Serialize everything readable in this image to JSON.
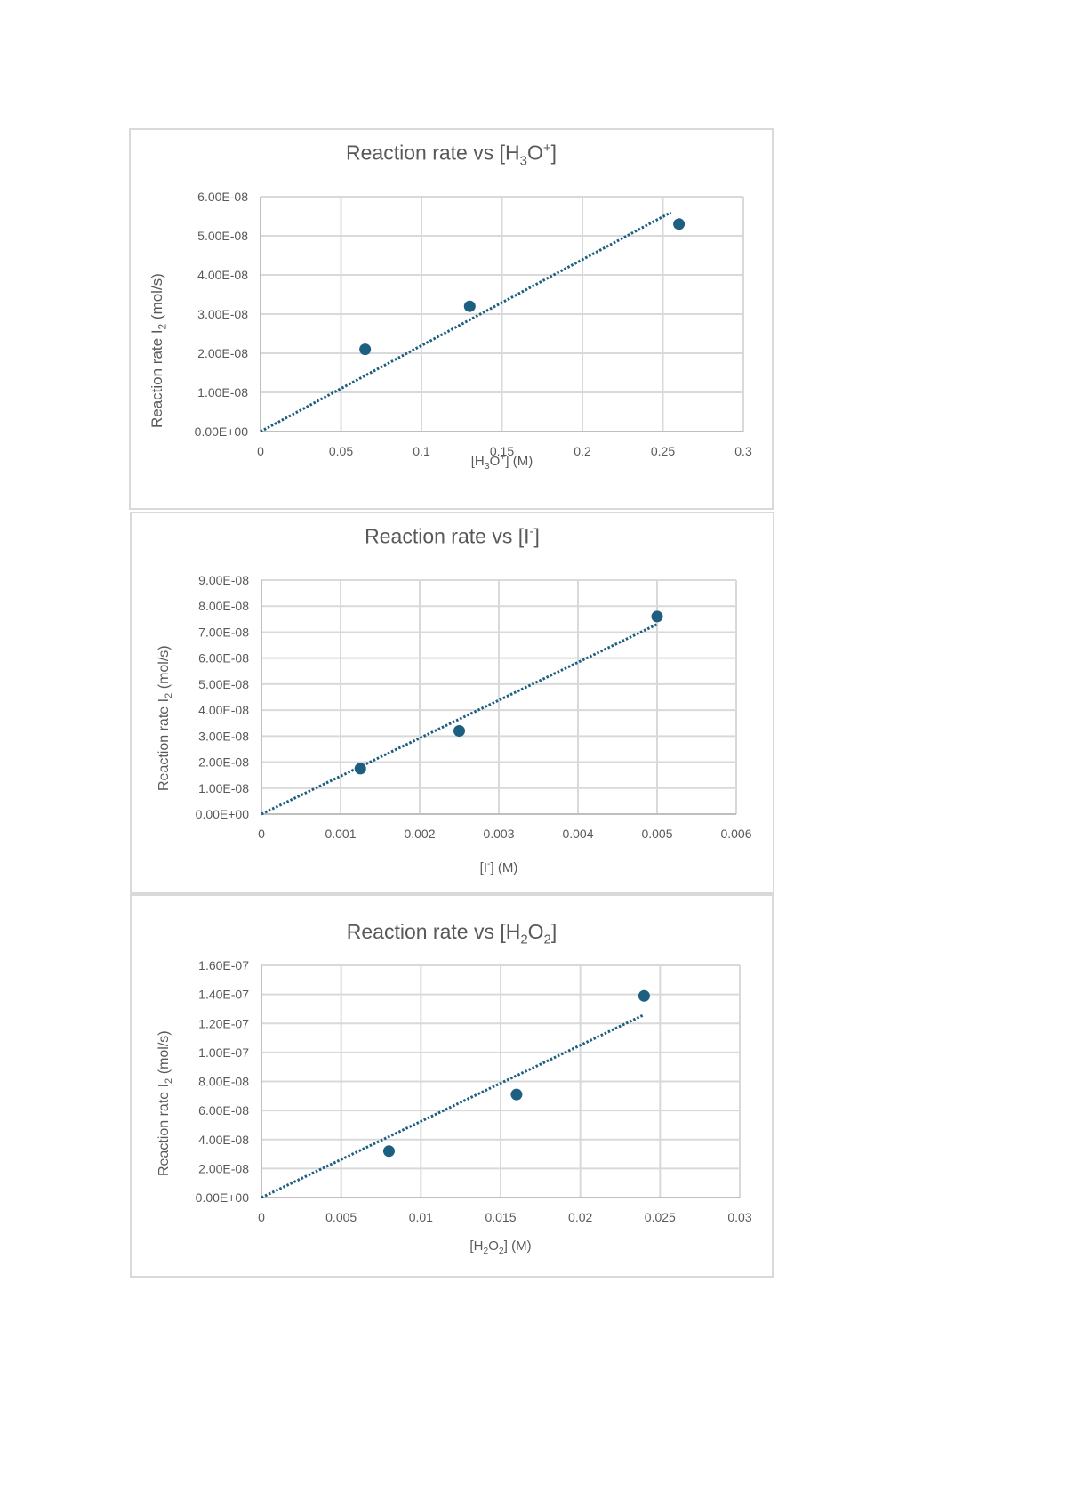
{
  "colors": {
    "series": "#1d5f80",
    "grid": "#d9d9d9",
    "text": "#595959",
    "frame": "#d9d9d9"
  },
  "chart_data": [
    {
      "type": "scatter",
      "title": "Reaction rate vs [H3O+]",
      "title_parts": {
        "pre": "Reaction rate vs [H",
        "sub": "3",
        "mid": "O",
        "sup": "+",
        "post": "]"
      },
      "xlabel": "[H3O+] (M)",
      "xlabel_parts": {
        "pre": "[H",
        "sub": "3",
        "mid": "O",
        "sup": "+",
        "post": "] (M)"
      },
      "ylabel": "Reaction rate I2 (mol/s)",
      "ylabel_parts": {
        "pre": "Reaction rate I",
        "sub": "2",
        "post": " (mol/s)"
      },
      "xlim": [
        0,
        0.3
      ],
      "ylim": [
        0,
        6e-08
      ],
      "x_ticks": [
        0,
        0.05,
        0.1,
        0.15,
        0.2,
        0.25,
        0.3
      ],
      "x_tick_labels": [
        "0",
        "0.05",
        "0.1",
        "0.15",
        "0.2",
        "0.25",
        "0.3"
      ],
      "y_ticks": [
        0,
        1e-08,
        2e-08,
        3e-08,
        4e-08,
        5e-08,
        6e-08
      ],
      "y_tick_labels": [
        "0.00E+00",
        "1.00E-08",
        "2.00E-08",
        "3.00E-08",
        "4.00E-08",
        "5.00E-08",
        "6.00E-08"
      ],
      "grid": true,
      "legend": null,
      "series": [
        {
          "name": "Reaction rate",
          "x": [
            0.065,
            0.13,
            0.26
          ],
          "y": [
            2.1e-08,
            3.2e-08,
            5.3e-08
          ]
        }
      ],
      "trendline": {
        "type": "linear",
        "style": "dotted",
        "x": [
          0,
          0.255
        ],
        "y": [
          0,
          5.6e-08
        ]
      }
    },
    {
      "type": "scatter",
      "title": "Reaction rate vs [I-]",
      "title_parts": {
        "pre": "Reaction rate vs [I",
        "sup": "-",
        "post": "]"
      },
      "xlabel": "[I-] (M)",
      "xlabel_parts": {
        "pre": "[I",
        "sup": "-",
        "post": "] (M)"
      },
      "ylabel": "Reaction rate I2 (mol/s)",
      "ylabel_parts": {
        "pre": "Reaction rate I",
        "sub": "2",
        "post": " (mol/s)"
      },
      "xlim": [
        0,
        0.006
      ],
      "ylim": [
        0,
        9e-08
      ],
      "x_ticks": [
        0,
        0.001,
        0.002,
        0.003,
        0.004,
        0.005,
        0.006
      ],
      "x_tick_labels": [
        "0",
        "0.001",
        "0.002",
        "0.003",
        "0.004",
        "0.005",
        "0.006"
      ],
      "y_ticks": [
        0,
        1e-08,
        2e-08,
        3e-08,
        4e-08,
        5e-08,
        6e-08,
        7e-08,
        8e-08,
        9e-08
      ],
      "y_tick_labels": [
        "0.00E+00",
        "1.00E-08",
        "2.00E-08",
        "3.00E-08",
        "4.00E-08",
        "5.00E-08",
        "6.00E-08",
        "7.00E-08",
        "8.00E-08",
        "9.00E-08"
      ],
      "grid": true,
      "legend": null,
      "series": [
        {
          "name": "Reaction rate",
          "x": [
            0.00125,
            0.0025,
            0.005
          ],
          "y": [
            1.75e-08,
            3.2e-08,
            7.6e-08
          ]
        }
      ],
      "trendline": {
        "type": "linear",
        "style": "dotted",
        "x": [
          0,
          0.005
        ],
        "y": [
          0,
          7.3e-08
        ]
      }
    },
    {
      "type": "scatter",
      "title": "Reaction rate vs [H2O2]",
      "title_parts": {
        "pre": "Reaction rate vs [H",
        "sub": "2",
        "mid": "O",
        "sub2": "2",
        "post": "]"
      },
      "xlabel": "[H2O2] (M)",
      "xlabel_parts": {
        "pre": "[H",
        "sub": "2",
        "mid": "O",
        "sub2": "2",
        "post": "] (M)"
      },
      "ylabel": "Reaction rate I2 (mol/s)",
      "ylabel_parts": {
        "pre": "Reaction rate I",
        "sub": "2",
        "post": " (mol/s)"
      },
      "xlim": [
        0,
        0.03
      ],
      "ylim": [
        0,
        1.6e-07
      ],
      "x_ticks": [
        0,
        0.005,
        0.01,
        0.015,
        0.02,
        0.025,
        0.03
      ],
      "x_tick_labels": [
        "0",
        "0.005",
        "0.01",
        "0.015",
        "0.02",
        "0.025",
        "0.03"
      ],
      "y_ticks": [
        0,
        2e-08,
        4e-08,
        6e-08,
        8e-08,
        1e-07,
        1.2e-07,
        1.4e-07,
        1.6e-07
      ],
      "y_tick_labels": [
        "0.00E+00",
        "2.00E-08",
        "4.00E-08",
        "6.00E-08",
        "8.00E-08",
        "1.00E-07",
        "1.20E-07",
        "1.40E-07",
        "1.60E-07"
      ],
      "grid": true,
      "legend": null,
      "series": [
        {
          "name": "Reaction rate",
          "x": [
            0.008,
            0.016,
            0.024
          ],
          "y": [
            3.2e-08,
            7.1e-08,
            1.39e-07
          ]
        }
      ],
      "trendline": {
        "type": "linear",
        "style": "dotted",
        "x": [
          0,
          0.024
        ],
        "y": [
          0,
          1.26e-07
        ]
      }
    }
  ]
}
